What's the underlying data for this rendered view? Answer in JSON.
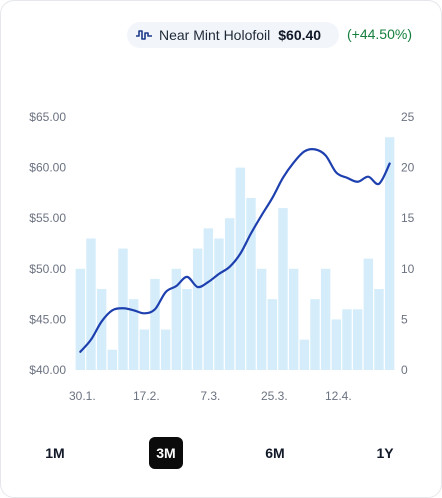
{
  "legend": {
    "icon": "pulse-line-icon",
    "name": "Near Mint Holofoil",
    "price": "$60.40",
    "change": "(+44.50%)",
    "line_color": "#1e40af",
    "bar_color": "#d5edfb",
    "change_color": "#15803d"
  },
  "range_buttons": [
    {
      "label": "1M",
      "active": false
    },
    {
      "label": "3M",
      "active": true
    },
    {
      "label": "6M",
      "active": false
    },
    {
      "label": "1Y",
      "active": false
    }
  ],
  "chart_data": {
    "type": "bar+line",
    "x_tick_labels": [
      "30.1.",
      "17.2.",
      "7.3.",
      "25.3.",
      "12.4."
    ],
    "x_tick_indices": [
      0,
      6,
      12,
      18,
      24
    ],
    "y_left": {
      "min": 40,
      "max": 65,
      "ticks": [
        "$40.00",
        "$45.00",
        "$50.00",
        "$55.00",
        "$60.00",
        "$65.00"
      ]
    },
    "y_right": {
      "min": 0,
      "max": 25,
      "ticks": [
        "0",
        "5",
        "10",
        "15",
        "20",
        "25"
      ]
    },
    "bars": [
      10,
      13,
      8,
      2,
      12,
      7,
      4,
      9,
      4,
      10,
      8,
      12,
      14,
      13,
      15,
      20,
      17,
      10,
      7,
      16,
      10,
      3,
      7,
      10,
      5,
      6,
      6,
      11,
      8,
      23
    ],
    "price_line": [
      41.8,
      43.0,
      44.8,
      45.9,
      46.1,
      45.9,
      45.6,
      46.0,
      47.7,
      48.3,
      49.2,
      48.2,
      48.7,
      49.5,
      50.2,
      51.5,
      53.5,
      55.3,
      57.0,
      59.0,
      60.5,
      61.6,
      61.8,
      61.2,
      59.5,
      59.0,
      58.6,
      59.1,
      58.4,
      60.4
    ]
  }
}
